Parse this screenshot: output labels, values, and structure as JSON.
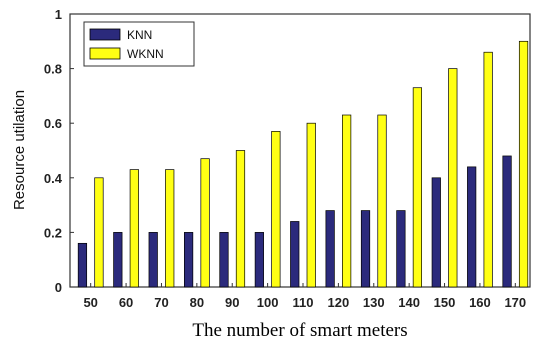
{
  "chart_data": {
    "type": "bar",
    "xlabel": "The number of smart meters",
    "ylabel": "Resource utilation",
    "ylim": [
      0,
      1
    ],
    "yticks": [
      "0",
      "0.2",
      "0.4",
      "0.6",
      "0.8",
      "1"
    ],
    "categories": [
      "50",
      "60",
      "70",
      "80",
      "90",
      "100",
      "110",
      "120",
      "130",
      "140",
      "150",
      "160",
      "170"
    ],
    "series": [
      {
        "name": "KNN",
        "color": "#2b2a7c",
        "values": [
          0.16,
          0.2,
          0.2,
          0.2,
          0.2,
          0.2,
          0.24,
          0.28,
          0.28,
          0.28,
          0.4,
          0.44,
          0.48
        ]
      },
      {
        "name": "WKNN",
        "color": "#ffff14",
        "values": [
          0.4,
          0.43,
          0.43,
          0.47,
          0.5,
          0.57,
          0.6,
          0.63,
          0.63,
          0.73,
          0.8,
          0.86,
          0.9
        ]
      }
    ],
    "legend_position": "top-left",
    "grid": false
  }
}
